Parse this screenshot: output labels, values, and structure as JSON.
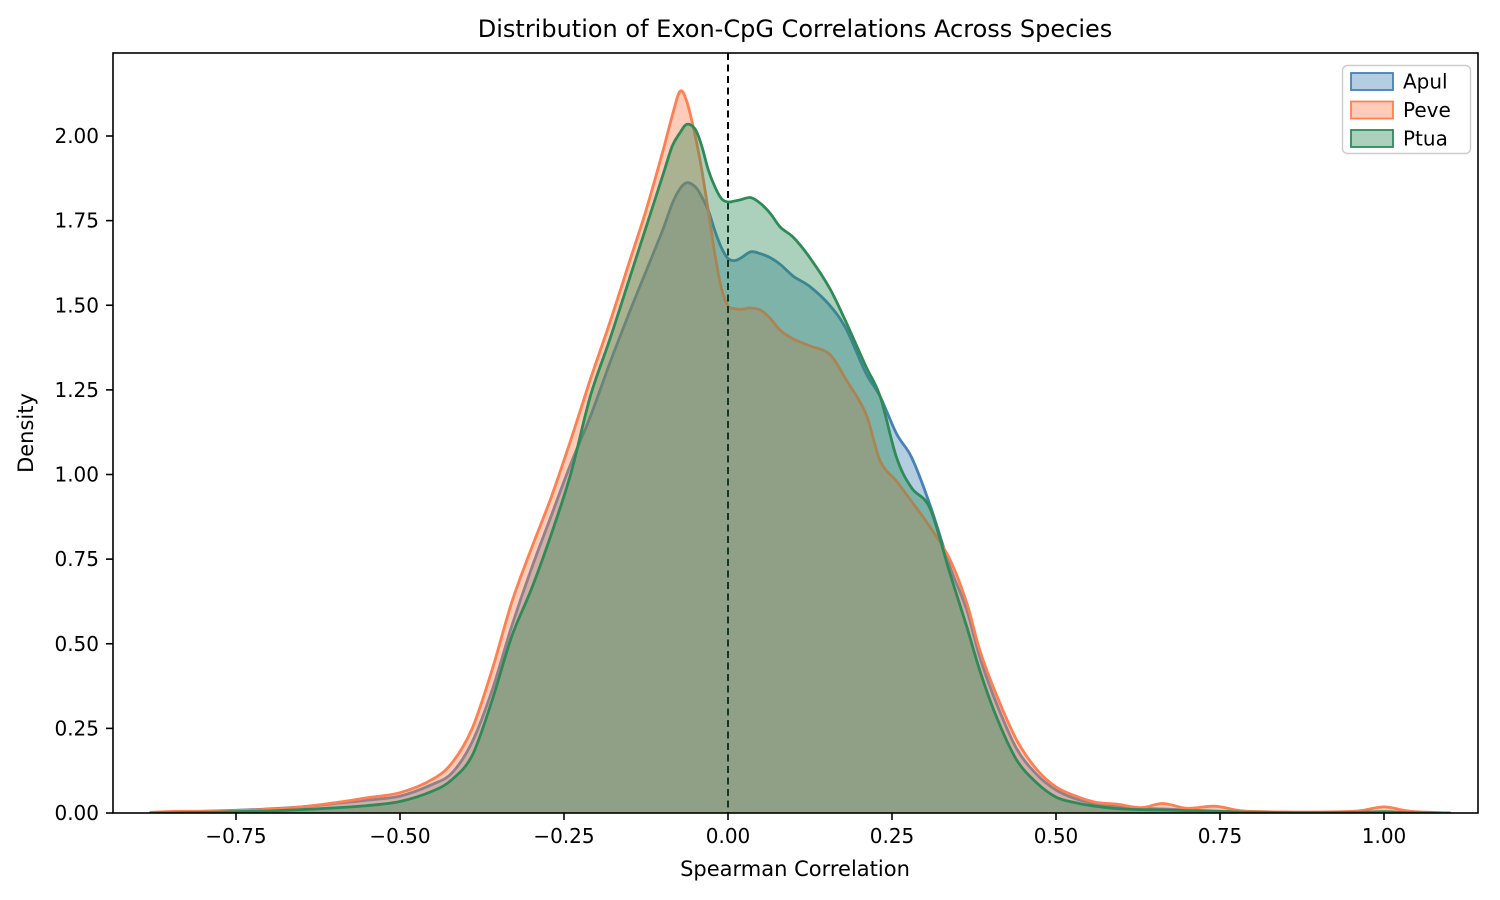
{
  "chart_data": {
    "type": "area",
    "subtype": "kde-density",
    "title": "Distribution of Exon-CpG Correlations Across Species",
    "xlabel": "Spearman Correlation",
    "ylabel": "Density",
    "xlim": [
      -0.9375,
      1.143
    ],
    "ylim": [
      0,
      2.245
    ],
    "grid": false,
    "legend_position": "upper right",
    "background": "#ffffff",
    "axis_color": "#000000",
    "vline": {
      "x": 0.0,
      "style": "dashed",
      "color": "#000000"
    },
    "xtick_values": [
      -0.75,
      -0.5,
      -0.25,
      0.0,
      0.25,
      0.5,
      0.75,
      1.0
    ],
    "xtick_labels": [
      "−0.75",
      "−0.50",
      "−0.25",
      "0.00",
      "0.25",
      "0.50",
      "0.75",
      "1.00"
    ],
    "ytick_values": [
      0.0,
      0.25,
      0.5,
      0.75,
      1.0,
      1.25,
      1.5,
      1.75,
      2.0
    ],
    "ytick_labels": [
      "0.00",
      "0.25",
      "0.50",
      "0.75",
      "1.00",
      "1.25",
      "1.50",
      "1.75",
      "2.00"
    ],
    "x": [
      -0.88,
      -0.84,
      -0.8,
      -0.75,
      -0.7,
      -0.65,
      -0.6,
      -0.55,
      -0.5,
      -0.45,
      -0.42,
      -0.39,
      -0.36,
      -0.33,
      -0.3,
      -0.27,
      -0.24,
      -0.21,
      -0.18,
      -0.15,
      -0.125,
      -0.1,
      -0.085,
      -0.073,
      -0.0625,
      -0.05,
      -0.04,
      -0.03,
      -0.02,
      -0.01,
      0.0,
      0.01,
      0.02,
      0.035,
      0.05,
      0.065,
      0.08,
      0.1,
      0.125,
      0.155,
      0.18,
      0.21,
      0.232,
      0.257,
      0.28,
      0.308,
      0.338,
      0.364,
      0.384,
      0.41,
      0.44,
      0.47,
      0.5,
      0.53,
      0.56,
      0.593,
      0.63,
      0.663,
      0.7,
      0.742,
      0.78,
      0.82,
      0.86,
      0.9,
      0.96,
      1.0,
      1.04,
      1.1
    ],
    "series": [
      {
        "name": "Apul",
        "color": "#4682B4",
        "fill_alpha": 0.4,
        "peak": {
          "x": -0.06,
          "density": 1.86
        },
        "values": [
          0.001,
          0.003,
          0.005,
          0.008,
          0.012,
          0.018,
          0.028,
          0.038,
          0.05,
          0.085,
          0.12,
          0.21,
          0.36,
          0.55,
          0.72,
          0.875,
          1.03,
          1.17,
          1.33,
          1.48,
          1.6,
          1.72,
          1.8,
          1.845,
          1.862,
          1.85,
          1.82,
          1.78,
          1.72,
          1.67,
          1.638,
          1.632,
          1.64,
          1.658,
          1.652,
          1.64,
          1.62,
          1.585,
          1.555,
          1.5,
          1.43,
          1.3,
          1.23,
          1.12,
          1.05,
          0.91,
          0.73,
          0.6,
          0.46,
          0.32,
          0.19,
          0.115,
          0.068,
          0.042,
          0.028,
          0.02,
          0.014,
          0.012,
          0.009,
          0.006,
          0.004,
          0.002,
          0.001,
          0.001,
          0.0,
          0.0,
          0.0,
          0.0
        ]
      },
      {
        "name": "Peve",
        "color": "#FF7F50",
        "fill_alpha": 0.4,
        "peak": {
          "x": -0.07,
          "density": 2.13
        },
        "values": [
          0.002,
          0.005,
          0.005,
          0.007,
          0.011,
          0.018,
          0.03,
          0.045,
          0.06,
          0.1,
          0.15,
          0.25,
          0.42,
          0.62,
          0.78,
          0.93,
          1.1,
          1.28,
          1.45,
          1.63,
          1.78,
          1.95,
          2.06,
          2.132,
          2.1,
          2.0,
          1.9,
          1.78,
          1.65,
          1.55,
          1.498,
          1.49,
          1.488,
          1.492,
          1.485,
          1.46,
          1.425,
          1.4,
          1.38,
          1.355,
          1.28,
          1.18,
          1.04,
          0.98,
          0.92,
          0.845,
          0.75,
          0.62,
          0.48,
          0.345,
          0.216,
          0.13,
          0.077,
          0.05,
          0.032,
          0.026,
          0.016,
          0.028,
          0.014,
          0.02,
          0.007,
          0.004,
          0.003,
          0.003,
          0.006,
          0.018,
          0.005,
          0.0
        ]
      },
      {
        "name": "Ptua",
        "color": "#2E8B57",
        "fill_alpha": 0.4,
        "peak": {
          "x": -0.06,
          "density": 2.04
        },
        "values": [
          0.0,
          0.001,
          0.002,
          0.004,
          0.006,
          0.01,
          0.015,
          0.022,
          0.034,
          0.065,
          0.1,
          0.17,
          0.33,
          0.52,
          0.66,
          0.82,
          1.0,
          1.23,
          1.4,
          1.58,
          1.73,
          1.88,
          1.97,
          2.01,
          2.035,
          2.02,
          1.97,
          1.9,
          1.85,
          1.815,
          1.805,
          1.808,
          1.812,
          1.818,
          1.8,
          1.77,
          1.73,
          1.7,
          1.64,
          1.55,
          1.45,
          1.32,
          1.23,
          1.05,
          0.96,
          0.9,
          0.71,
          0.55,
          0.42,
          0.28,
          0.157,
          0.09,
          0.047,
          0.03,
          0.02,
          0.013,
          0.01,
          0.009,
          0.007,
          0.005,
          0.003,
          0.002,
          0.001,
          0.001,
          0.002,
          0.004,
          0.001,
          0.0
        ]
      }
    ]
  },
  "legend": {
    "items": [
      {
        "label": "Apul",
        "color": "#4682B4"
      },
      {
        "label": "Peve",
        "color": "#FF7F50"
      },
      {
        "label": "Ptua",
        "color": "#2E8B57"
      }
    ]
  }
}
